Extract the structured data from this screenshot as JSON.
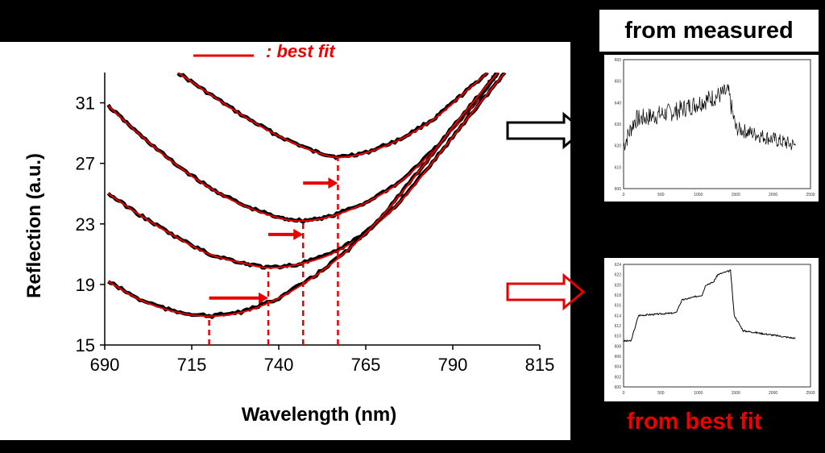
{
  "chart_data": [
    {
      "type": "line",
      "title": "",
      "xlabel": "Wavelength (nm)",
      "ylabel": "Reflection (a.u.)",
      "xlim": [
        690,
        815
      ],
      "ylim": [
        15,
        33
      ],
      "xticks": [
        690,
        715,
        740,
        765,
        790,
        815
      ],
      "yticks": [
        15,
        19,
        23,
        27,
        31
      ],
      "legend": {
        "label": ": best fit",
        "color": "#e60000",
        "placement": "top"
      },
      "series": [
        {
          "curve": "measured (black) with best fit (red)",
          "min_x": 757,
          "min_y": 27.4,
          "points": [
            [
              711,
              33
            ],
            [
              720,
              31.6
            ],
            [
              730,
              30.1
            ],
            [
              740,
              28.8
            ],
            [
              750,
              27.8
            ],
            [
              757,
              27.4
            ],
            [
              765,
              27.7
            ],
            [
              775,
              28.6
            ],
            [
              785,
              30.0
            ],
            [
              792,
              31.4
            ],
            [
              800,
              33
            ]
          ]
        },
        {
          "curve": "measured (black) with best fit (red)",
          "min_x": 747,
          "min_y": 23.2,
          "points": [
            [
              691,
              30.8
            ],
            [
              700,
              28.9
            ],
            [
              710,
              27.0
            ],
            [
              720,
              25.4
            ],
            [
              730,
              24.2
            ],
            [
              740,
              23.4
            ],
            [
              747,
              23.2
            ],
            [
              755,
              23.5
            ],
            [
              765,
              24.4
            ],
            [
              775,
              25.8
            ],
            [
              785,
              28.0
            ],
            [
              795,
              30.6
            ],
            [
              803,
              33
            ]
          ]
        },
        {
          "curve": "measured (black) with best fit (red)",
          "min_x": 737,
          "min_y": 20.1,
          "points": [
            [
              691,
              25.0
            ],
            [
              700,
              23.6
            ],
            [
              710,
              22.2
            ],
            [
              720,
              21.0
            ],
            [
              730,
              20.4
            ],
            [
              737,
              20.1
            ],
            [
              745,
              20.3
            ],
            [
              755,
              21.0
            ],
            [
              765,
              22.4
            ],
            [
              775,
              24.5
            ],
            [
              785,
              27.3
            ],
            [
              795,
              30.2
            ],
            [
              805,
              33
            ]
          ]
        },
        {
          "curve": "measured (black) with best fit (red)",
          "min_x": 720,
          "min_y": 16.9,
          "points": [
            [
              691,
              19.2
            ],
            [
              700,
              18.0
            ],
            [
              710,
              17.2
            ],
            [
              720,
              16.9
            ],
            [
              730,
              17.2
            ],
            [
              740,
              18.1
            ],
            [
              750,
              19.5
            ],
            [
              760,
              21.3
            ],
            [
              770,
              23.6
            ],
            [
              780,
              26.4
            ],
            [
              790,
              29.4
            ],
            [
              800,
              32.2
            ],
            [
              803,
              33
            ]
          ]
        }
      ],
      "minima_markers_x": [
        720,
        737,
        747,
        757
      ]
    },
    {
      "type": "line",
      "label": "from measured",
      "xlim": [
        0,
        2500
      ],
      "xticks": [
        0,
        500,
        1000,
        1500,
        2000,
        2500
      ],
      "yticks": [
        "600",
        "610",
        "620",
        "630",
        "640",
        "650",
        "660"
      ],
      "trend": [
        [
          0,
          620
        ],
        [
          150,
          632
        ],
        [
          700,
          636
        ],
        [
          1400,
          645
        ],
        [
          1500,
          628
        ],
        [
          2300,
          620
        ]
      ]
    },
    {
      "type": "line",
      "label": "from best fit",
      "xlim": [
        0,
        2500
      ],
      "xticks": [
        0,
        500,
        1000,
        1500,
        2000,
        2500
      ],
      "yticks": [
        "600",
        "602",
        "604",
        "606",
        "608",
        "610",
        "612",
        "614",
        "616",
        "618",
        "620",
        "622",
        "624"
      ],
      "trend": [
        [
          0,
          609
        ],
        [
          100,
          609
        ],
        [
          200,
          614
        ],
        [
          700,
          614.5
        ],
        [
          780,
          617
        ],
        [
          1050,
          618
        ],
        [
          1100,
          620
        ],
        [
          1200,
          620.5
        ],
        [
          1260,
          622
        ],
        [
          1430,
          622.8
        ],
        [
          1480,
          614
        ],
        [
          1600,
          611
        ],
        [
          2300,
          609.5
        ]
      ]
    }
  ],
  "colors": {
    "measured": "#000000",
    "fit": "#e60000",
    "arrow_measured": "#000000",
    "arrow_fit": "#e60000"
  },
  "labels": {
    "measured": "from measured",
    "best_fit": "from best fit"
  }
}
